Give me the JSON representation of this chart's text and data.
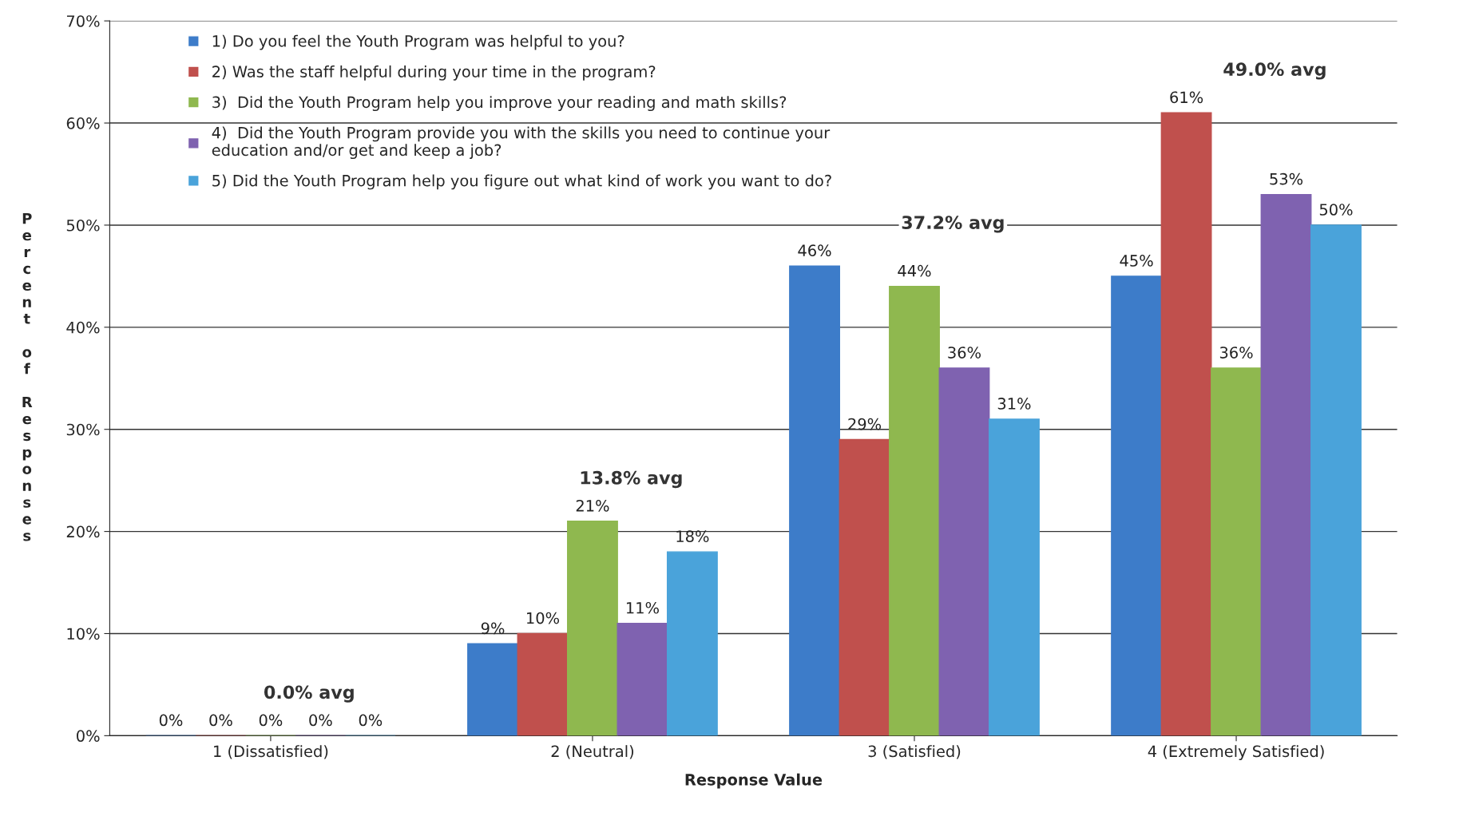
{
  "chart_data": {
    "type": "bar",
    "xlabel": "Response Value",
    "ylabel": "Percent of Responses",
    "categories": [
      "1 (Dissatisfied)",
      "2 (Neutral)",
      "3 (Satisfied)",
      "4 (Extremely Satisfied)"
    ],
    "series": [
      {
        "name": "1) Do you feel the Youth Program was helpful to you?",
        "color": "#3d7cc9",
        "values": [
          0,
          9,
          46,
          45
        ],
        "value_labels": [
          "0%",
          "9%",
          "46%",
          "45%"
        ]
      },
      {
        "name": "2) Was the staff helpful during your time in the program?",
        "color": "#c0504d",
        "values": [
          0,
          10,
          29,
          61
        ],
        "value_labels": [
          "0%",
          "10%",
          "29%",
          "61%"
        ]
      },
      {
        "name": "3)  Did the Youth Program help you improve your reading and math skills?",
        "color": "#8fb84f",
        "values": [
          0,
          21,
          44,
          36
        ],
        "value_labels": [
          "0%",
          "21%",
          "44%",
          "36%"
        ]
      },
      {
        "name": "4)  Did the Youth Program provide you with the skills you need to continue your education and/or get and keep a job?",
        "color": "#7f62b0",
        "values": [
          0,
          11,
          36,
          53
        ],
        "value_labels": [
          "0%",
          "11%",
          "36%",
          "53%"
        ]
      },
      {
        "name": "5) Did the Youth Program help you figure out what kind of work you want to do?",
        "color": "#4aa3da",
        "values": [
          0,
          18,
          31,
          50
        ],
        "value_labels": [
          "0%",
          "18%",
          "31%",
          "50%"
        ]
      }
    ],
    "ylim": [
      0,
      70
    ],
    "yticks": [
      {
        "value": 0,
        "label": "0%"
      },
      {
        "value": 10,
        "label": "10%"
      },
      {
        "value": 20,
        "label": "20%"
      },
      {
        "value": 30,
        "label": "30%"
      },
      {
        "value": 40,
        "label": "40%"
      },
      {
        "value": 50,
        "label": "50%"
      },
      {
        "value": 60,
        "label": "60%"
      },
      {
        "value": 70,
        "label": "70%"
      }
    ],
    "annotations": [
      "0.0% avg",
      "13.8% avg",
      "37.2% avg",
      "49.0% avg"
    ],
    "grid": "y",
    "legend": "top left"
  }
}
